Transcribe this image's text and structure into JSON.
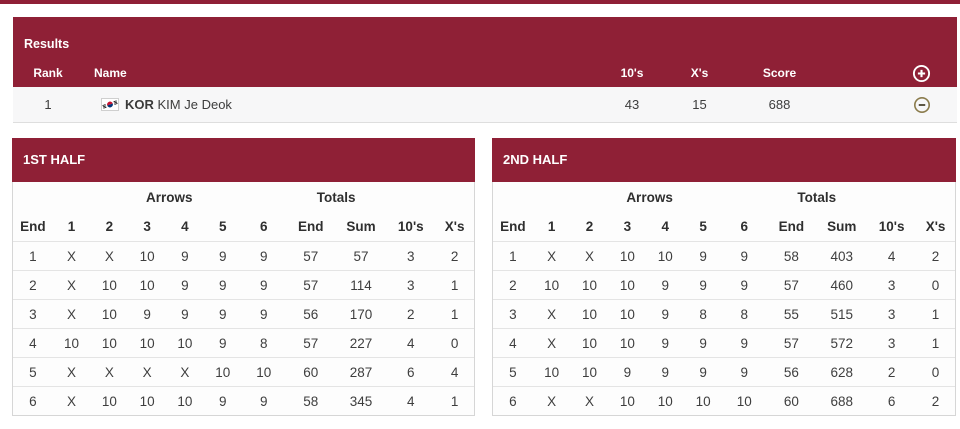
{
  "accent_color": "#8f2036",
  "minus_icon_color": "#8b7c4d",
  "results": {
    "title": "Results",
    "columns": {
      "rank": "Rank",
      "name": "Name",
      "tens": "10's",
      "xs": "X's",
      "score": "Score"
    },
    "row": {
      "rank": "1",
      "noc": "KOR",
      "athlete": "KIM Je Deok",
      "tens": "43",
      "xs": "15",
      "score": "688"
    }
  },
  "halves": [
    {
      "title": "1ST HALF",
      "group_arrows": "Arrows",
      "group_totals": "Totals",
      "columns": [
        "End",
        "1",
        "2",
        "3",
        "4",
        "5",
        "6",
        "End",
        "Sum",
        "10's",
        "X's"
      ],
      "rows": [
        [
          "1",
          "X",
          "X",
          "10",
          "9",
          "9",
          "9",
          "57",
          "57",
          "3",
          "2"
        ],
        [
          "2",
          "X",
          "10",
          "10",
          "9",
          "9",
          "9",
          "57",
          "114",
          "3",
          "1"
        ],
        [
          "3",
          "X",
          "10",
          "9",
          "9",
          "9",
          "9",
          "56",
          "170",
          "2",
          "1"
        ],
        [
          "4",
          "10",
          "10",
          "10",
          "10",
          "9",
          "8",
          "57",
          "227",
          "4",
          "0"
        ],
        [
          "5",
          "X",
          "X",
          "X",
          "X",
          "10",
          "10",
          "60",
          "287",
          "6",
          "4"
        ],
        [
          "6",
          "X",
          "10",
          "10",
          "10",
          "9",
          "9",
          "58",
          "345",
          "4",
          "1"
        ]
      ]
    },
    {
      "title": "2ND HALF",
      "group_arrows": "Arrows",
      "group_totals": "Totals",
      "columns": [
        "End",
        "1",
        "2",
        "3",
        "4",
        "5",
        "6",
        "End",
        "Sum",
        "10's",
        "X's"
      ],
      "rows": [
        [
          "1",
          "X",
          "X",
          "10",
          "10",
          "9",
          "9",
          "58",
          "403",
          "4",
          "2"
        ],
        [
          "2",
          "10",
          "10",
          "10",
          "9",
          "9",
          "9",
          "57",
          "460",
          "3",
          "0"
        ],
        [
          "3",
          "X",
          "10",
          "10",
          "9",
          "8",
          "8",
          "55",
          "515",
          "3",
          "1"
        ],
        [
          "4",
          "X",
          "10",
          "10",
          "9",
          "9",
          "9",
          "57",
          "572",
          "3",
          "1"
        ],
        [
          "5",
          "10",
          "10",
          "9",
          "9",
          "9",
          "9",
          "56",
          "628",
          "2",
          "0"
        ],
        [
          "6",
          "X",
          "X",
          "10",
          "10",
          "10",
          "10",
          "60",
          "688",
          "6",
          "2"
        ]
      ]
    }
  ]
}
